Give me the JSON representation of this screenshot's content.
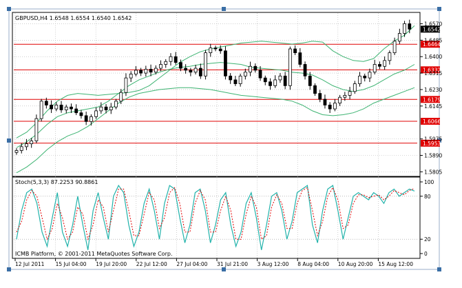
{
  "header": {
    "symbol_info": "GBPUSD,H4  1.6548 1.6554 1.6540 1.6542"
  },
  "indicator": {
    "label": "Stoch(5,3,3) 87.2253 90.8861"
  },
  "footer": {
    "copyright": "ICMB Platform, © 2001-2011 MetaQuotes Software Corp."
  },
  "colors": {
    "background": "#ffffff",
    "candle": "#000000",
    "bollinger": "#3cb371",
    "support_resistance": "#e00000",
    "stoch_main": "#20b2aa",
    "stoch_signal": "#e00000",
    "level_label_bg": "#e00000",
    "current_price_bg": "#000000"
  },
  "chart_data": [
    {
      "type": "candlestick",
      "title": "GBPUSD,H4  1.6548 1.6554 1.6540 1.6542",
      "ylim": [
        1.5785,
        1.6625
      ],
      "price_axis_ticks": [
        "1.6570",
        "1.6485",
        "1.6400",
        "1.6315",
        "1.6230",
        "1.6145",
        "1.5975",
        "1.5890",
        "1.5805"
      ],
      "time_axis_labels": [
        "12 Jul 2011",
        "15 Jul 04:00",
        "19 Jul 20:00",
        "22 Jul 12:00",
        "27 Jul 04:00",
        "31 Jul 21:00",
        "3 Aug 12:00",
        "8 Aug 04:00",
        "10 Aug 20:00",
        "15 Aug 12:00"
      ],
      "horizontal_levels": [
        {
          "value": 1.6464,
          "label": "1.6464"
        },
        {
          "value": 1.6332,
          "label": "1.6332"
        },
        {
          "value": 1.6179,
          "label": "1.6179"
        },
        {
          "value": 1.6066,
          "label": "1.6066"
        },
        {
          "value": 1.5953,
          "label": "1.5953"
        }
      ],
      "current_price": {
        "value": 1.6542,
        "label": "1.6542"
      },
      "closes": [
        1.5915,
        1.5935,
        1.595,
        1.5965,
        1.608,
        1.617,
        1.615,
        1.613,
        1.615,
        1.6125,
        1.614,
        1.613,
        1.611,
        1.6095,
        1.6065,
        1.609,
        1.612,
        1.614,
        1.6125,
        1.614,
        1.617,
        1.6215,
        1.629,
        1.631,
        1.633,
        1.6315,
        1.6335,
        1.632,
        1.634,
        1.636,
        1.6375,
        1.64,
        1.637,
        1.634,
        1.633,
        1.632,
        1.634,
        1.63,
        1.642,
        1.6445,
        1.644,
        1.643,
        1.63,
        1.628,
        1.626,
        1.63,
        1.632,
        1.635,
        1.633,
        1.629,
        1.627,
        1.625,
        1.628,
        1.63,
        1.625,
        1.644,
        1.642,
        1.636,
        1.63,
        1.625,
        1.621,
        1.618,
        1.615,
        1.613,
        1.616,
        1.619,
        1.62,
        1.622,
        1.626,
        1.63,
        1.629,
        1.632,
        1.636,
        1.635,
        1.638,
        1.642,
        1.648,
        1.652,
        1.657,
        1.6542
      ],
      "bollinger": {
        "upper": [
          1.598,
          1.601,
          1.606,
          1.612,
          1.617,
          1.62,
          1.621,
          1.6205,
          1.62,
          1.6205,
          1.621,
          1.6215,
          1.6225,
          1.625,
          1.629,
          1.633,
          1.637,
          1.64,
          1.6425,
          1.644,
          1.645,
          1.646,
          1.647,
          1.6475,
          1.648,
          1.6475,
          1.647,
          1.6465,
          1.647,
          1.648,
          1.6475,
          1.643,
          1.64,
          1.638,
          1.6375,
          1.639,
          1.644,
          1.648,
          1.651,
          1.656
        ],
        "middle": [
          1.593,
          1.596,
          1.6,
          1.605,
          1.609,
          1.611,
          1.612,
          1.613,
          1.614,
          1.617,
          1.621,
          1.625,
          1.628,
          1.63,
          1.632,
          1.6335,
          1.6345,
          1.635,
          1.636,
          1.6365,
          1.637,
          1.6365,
          1.636,
          1.6345,
          1.634,
          1.6335,
          1.633,
          1.632,
          1.6315,
          1.6305,
          1.628,
          1.625,
          1.623,
          1.622,
          1.623,
          1.625,
          1.628,
          1.631,
          1.633,
          1.636
        ],
        "lower": [
          1.58,
          1.583,
          1.587,
          1.592,
          1.596,
          1.599,
          1.601,
          1.604,
          1.608,
          1.612,
          1.616,
          1.619,
          1.621,
          1.622,
          1.623,
          1.6235,
          1.624,
          1.624,
          1.6235,
          1.623,
          1.622,
          1.621,
          1.62,
          1.6195,
          1.619,
          1.6185,
          1.618,
          1.617,
          1.615,
          1.612,
          1.61,
          1.6095,
          1.61,
          1.611,
          1.613,
          1.616,
          1.618,
          1.62,
          1.622,
          1.624
        ]
      }
    },
    {
      "type": "line",
      "title": "Stoch(5,3,3) 87.2253 90.8861",
      "ylim": [
        0,
        100
      ],
      "ticks": [
        "100",
        "80",
        "20",
        "0"
      ],
      "levels": [
        80,
        20
      ],
      "series": [
        {
          "name": "main",
          "values": [
            20,
            60,
            85,
            90,
            70,
            30,
            10,
            50,
            85,
            30,
            10,
            40,
            80,
            40,
            5,
            60,
            85,
            50,
            20,
            80,
            95,
            85,
            40,
            10,
            30,
            70,
            90,
            60,
            20,
            70,
            95,
            90,
            50,
            15,
            40,
            85,
            90,
            60,
            15,
            40,
            75,
            85,
            40,
            10,
            30,
            70,
            85,
            50,
            5,
            40,
            80,
            85,
            60,
            20,
            45,
            85,
            90,
            95,
            40,
            15,
            60,
            90,
            95,
            60,
            20,
            50,
            80,
            85,
            80,
            75,
            85,
            80,
            70,
            85,
            90,
            80,
            85,
            90,
            87.2253
          ]
        },
        {
          "name": "signal",
          "values": [
            30,
            45,
            75,
            88,
            80,
            50,
            20,
            35,
            70,
            50,
            20,
            30,
            65,
            55,
            20,
            40,
            75,
            65,
            30,
            60,
            90,
            90,
            60,
            25,
            25,
            55,
            85,
            75,
            35,
            50,
            85,
            92,
            70,
            30,
            30,
            70,
            88,
            75,
            30,
            30,
            60,
            80,
            60,
            20,
            20,
            55,
            80,
            65,
            20,
            25,
            65,
            82,
            70,
            35,
            35,
            70,
            88,
            92,
            60,
            25,
            45,
            80,
            92,
            75,
            35,
            40,
            70,
            82,
            82,
            78,
            80,
            82,
            75,
            80,
            88,
            85,
            82,
            88,
            90.8861
          ]
        }
      ]
    }
  ]
}
